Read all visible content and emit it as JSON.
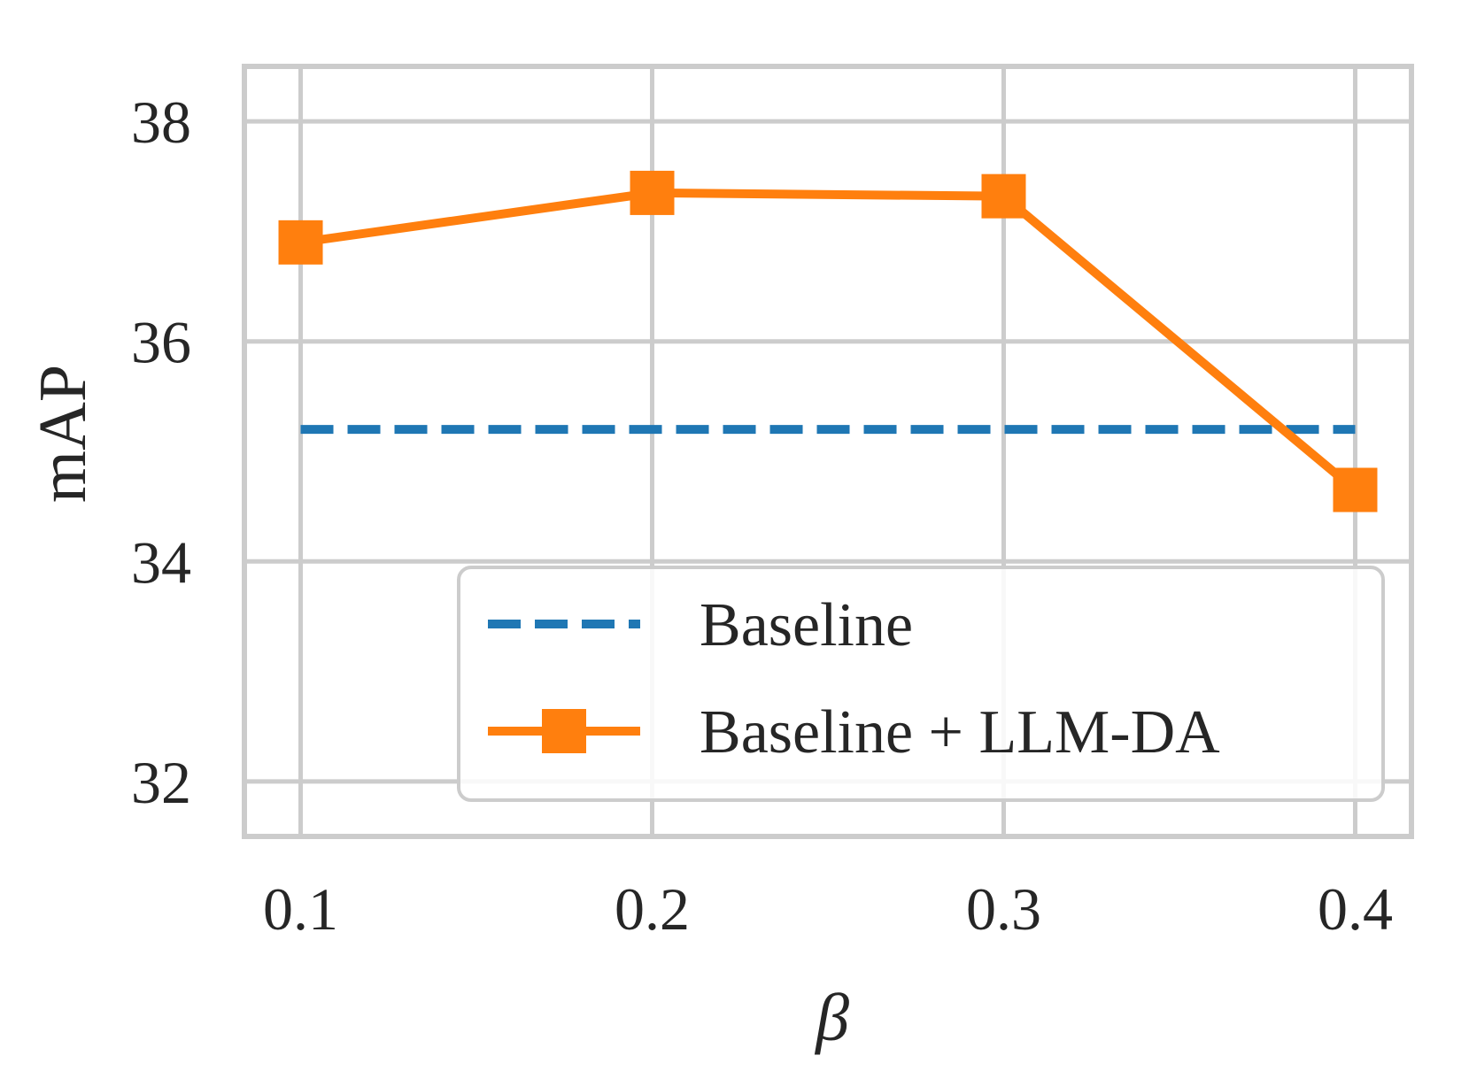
{
  "chart_data": {
    "type": "line",
    "title": "",
    "xlabel": "β",
    "ylabel": "mAP",
    "x": [
      0.1,
      0.2,
      0.3,
      0.4
    ],
    "x_tick_labels": [
      "0.1",
      "0.2",
      "0.3",
      "0.4"
    ],
    "y_ticks": [
      32,
      34,
      36,
      38
    ],
    "y_tick_labels": [
      "32",
      "34",
      "36",
      "38"
    ],
    "xlim": [
      0.084,
      0.416
    ],
    "ylim": [
      31.5,
      38.5
    ],
    "grid": true,
    "legend_position": "lower-right",
    "series": [
      {
        "name": "Baseline",
        "values": [
          35.2,
          35.2,
          35.2,
          35.2
        ],
        "style": "dashed",
        "marker": "none",
        "color": "#1f77b4"
      },
      {
        "name": "Baseline + LLM-DA",
        "values": [
          36.9,
          37.35,
          37.32,
          34.65
        ],
        "style": "solid",
        "marker": "square",
        "color": "#ff7f0e"
      }
    ]
  },
  "colors": {
    "grid": "#cccccc",
    "text": "#262626",
    "background": "#ffffff"
  }
}
